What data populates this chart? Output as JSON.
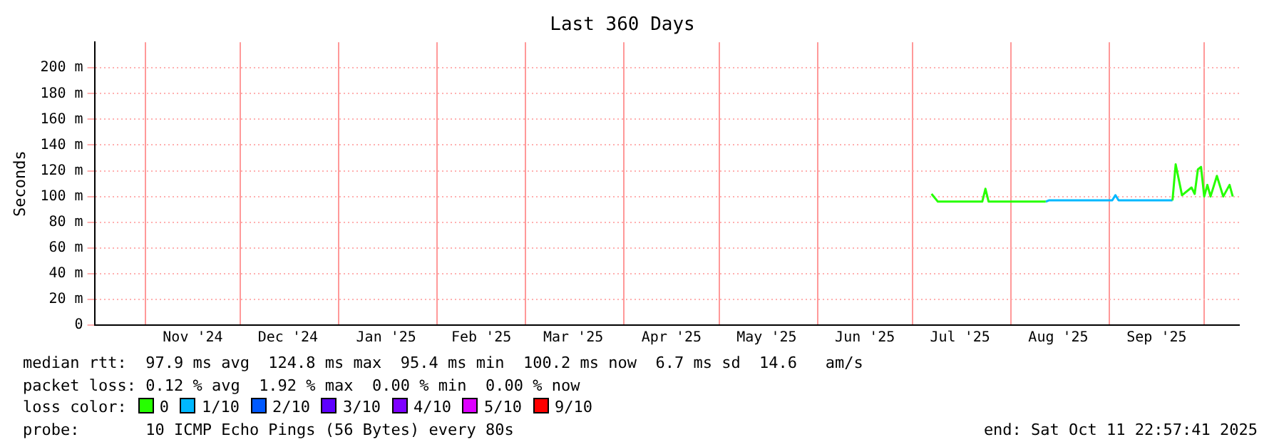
{
  "chart_data": {
    "type": "line",
    "title": "Last 360 Days",
    "ylabel": "Seconds",
    "xlim": [
      "2024-10-16",
      "2025-10-12"
    ],
    "xticks": [
      {
        "value": "2024-11-01",
        "label": null
      },
      {
        "value": "2024-11-16",
        "label": "Nov '24"
      },
      {
        "value": "2024-12-01",
        "label": null
      },
      {
        "value": "2024-12-16",
        "label": "Dec '24"
      },
      {
        "value": "2025-01-01",
        "label": null
      },
      {
        "value": "2025-01-16",
        "label": "Jan '25"
      },
      {
        "value": "2025-02-01",
        "label": null
      },
      {
        "value": "2025-02-15",
        "label": "Feb '25"
      },
      {
        "value": "2025-03-01",
        "label": null
      },
      {
        "value": "2025-03-16",
        "label": "Mar '25"
      },
      {
        "value": "2025-04-01",
        "label": null
      },
      {
        "value": "2025-04-16",
        "label": "Apr '25"
      },
      {
        "value": "2025-05-01",
        "label": null
      },
      {
        "value": "2025-05-16",
        "label": "May '25"
      },
      {
        "value": "2025-06-01",
        "label": null
      },
      {
        "value": "2025-06-16",
        "label": "Jun '25"
      },
      {
        "value": "2025-07-01",
        "label": null
      },
      {
        "value": "2025-07-16",
        "label": "Jul '25"
      },
      {
        "value": "2025-08-01",
        "label": null
      },
      {
        "value": "2025-08-16",
        "label": "Aug '25"
      },
      {
        "value": "2025-09-01",
        "label": null
      },
      {
        "value": "2025-09-16",
        "label": "Sep '25"
      },
      {
        "value": "2025-10-01",
        "label": null
      }
    ],
    "ylim": [
      0,
      220
    ],
    "yticks": [
      0,
      {
        "value": 20,
        "label": "20 m"
      },
      {
        "value": 40,
        "label": "40 m"
      },
      {
        "value": 60,
        "label": "60 m"
      },
      {
        "value": 80,
        "label": "80 m"
      },
      {
        "value": 100,
        "label": "100 m"
      },
      {
        "value": 120,
        "label": "120 m"
      },
      {
        "value": 140,
        "label": "140 m"
      },
      {
        "value": 160,
        "label": "160 m"
      },
      {
        "value": 180,
        "label": "180 m"
      },
      {
        "value": 200,
        "label": "200 m"
      }
    ],
    "grid": true,
    "legend": "bottom",
    "legend_title": "loss color:",
    "marker": "none",
    "line_style": "solid",
    "series": [
      {
        "name": "0",
        "color": "#26ff00",
        "x": [
          "2025-07-07",
          "2025-07-09",
          "2025-07-23",
          "2025-07-24",
          "2025-07-25",
          "2025-08-12",
          null,
          "2025-09-21",
          "2025-09-22",
          "2025-09-24",
          "2025-09-27",
          "2025-09-28",
          "2025-09-29",
          "2025-09-30",
          "2025-10-01",
          "2025-10-02",
          "2025-10-03",
          "2025-10-05",
          "2025-10-07",
          "2025-10-09",
          "2025-10-10"
        ],
        "values": [
          102,
          96,
          96,
          106,
          96,
          96,
          null,
          97,
          125,
          101,
          107,
          102,
          121,
          123,
          100,
          109,
          100,
          116,
          100,
          109,
          100
        ]
      },
      {
        "name": "1/10",
        "color": "#00b8ff",
        "x": [
          "2025-08-12",
          "2025-08-13",
          "2025-09-02",
          "2025-09-03",
          "2025-09-04",
          "2025-09-21"
        ],
        "values": [
          96,
          97,
          97,
          101,
          97,
          97
        ]
      },
      {
        "name": "2/10",
        "color": "#0059ff"
      },
      {
        "name": "3/10",
        "color": "#5e00ff"
      },
      {
        "name": "4/10",
        "color": "#7e00ff"
      },
      {
        "name": "5/10",
        "color": "#dd00ff"
      },
      {
        "name": "9/10",
        "color": "#ff0000"
      }
    ],
    "annotations": [
      "median rtt:  97.9 ms avg  124.8 ms max  95.4 ms min  100.2 ms now  6.7 ms sd  14.6   am/s",
      "packet loss: 0.12 % avg  1.92 % max  0.00 % min  0.00 % now",
      "probe:       10 ICMP Echo Pings (56 Bytes) every 80s",
      "end: Sat Oct 11 22:57:41 2025"
    ]
  }
}
